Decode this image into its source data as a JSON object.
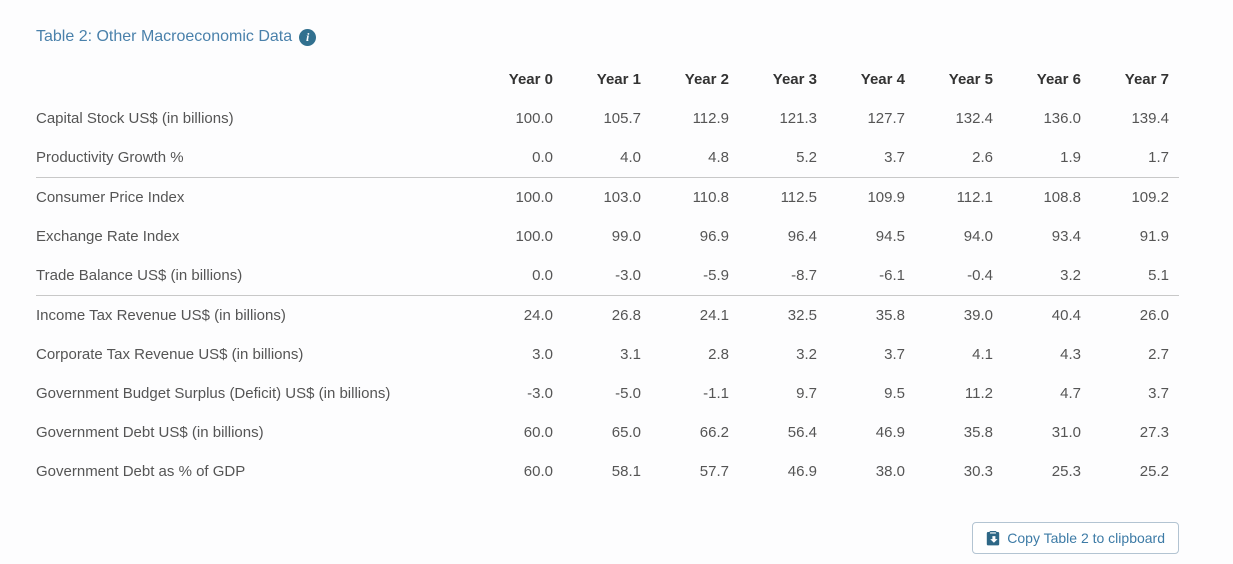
{
  "title": "Table 2: Other Macroeconomic Data",
  "info_icon": "info-circle-icon",
  "table": {
    "columns": [
      "Year 0",
      "Year 1",
      "Year 2",
      "Year 3",
      "Year 4",
      "Year 5",
      "Year 6",
      "Year 7"
    ],
    "rows": [
      {
        "label": "Capital Stock US$ (in billions)",
        "values": [
          "100.0",
          "105.7",
          "112.9",
          "121.3",
          "127.7",
          "132.4",
          "136.0",
          "139.4"
        ],
        "group_end": false
      },
      {
        "label": "Productivity Growth %",
        "values": [
          "0.0",
          "4.0",
          "4.8",
          "5.2",
          "3.7",
          "2.6",
          "1.9",
          "1.7"
        ],
        "group_end": true
      },
      {
        "label": "Consumer Price Index",
        "values": [
          "100.0",
          "103.0",
          "110.8",
          "112.5",
          "109.9",
          "112.1",
          "108.8",
          "109.2"
        ],
        "group_end": false
      },
      {
        "label": "Exchange Rate Index",
        "values": [
          "100.0",
          "99.0",
          "96.9",
          "96.4",
          "94.5",
          "94.0",
          "93.4",
          "91.9"
        ],
        "group_end": false
      },
      {
        "label": "Trade Balance US$ (in billions)",
        "values": [
          "0.0",
          "-3.0",
          "-5.9",
          "-8.7",
          "-6.1",
          "-0.4",
          "3.2",
          "5.1"
        ],
        "group_end": true
      },
      {
        "label": "Income Tax Revenue US$ (in billions)",
        "values": [
          "24.0",
          "26.8",
          "24.1",
          "32.5",
          "35.8",
          "39.0",
          "40.4",
          "26.0"
        ],
        "group_end": false
      },
      {
        "label": "Corporate Tax Revenue US$ (in billions)",
        "values": [
          "3.0",
          "3.1",
          "2.8",
          "3.2",
          "3.7",
          "4.1",
          "4.3",
          "2.7"
        ],
        "group_end": false
      },
      {
        "label": "Government Budget Surplus (Deficit) US$ (in billions)",
        "values": [
          "-3.0",
          "-5.0",
          "-1.1",
          "9.7",
          "9.5",
          "11.2",
          "4.7",
          "3.7"
        ],
        "group_end": false
      },
      {
        "label": "Government Debt US$ (in billions)",
        "values": [
          "60.0",
          "65.0",
          "66.2",
          "56.4",
          "46.9",
          "35.8",
          "31.0",
          "27.3"
        ],
        "group_end": false
      },
      {
        "label": "Government Debt as % of GDP",
        "values": [
          "60.0",
          "58.1",
          "57.7",
          "46.9",
          "38.0",
          "30.3",
          "25.3",
          "25.2"
        ],
        "group_end": false
      }
    ]
  },
  "button": {
    "label": "Copy Table 2 to clipboard",
    "icon": "clipboard-icon"
  },
  "colors": {
    "title": "#4a81ab",
    "info_icon_bg": "#31708f",
    "header_text": "#333333",
    "body_text": "#555555",
    "divider": "#c8c8c8",
    "button_text": "#3d7ba6",
    "button_border": "#b3c4d2"
  }
}
